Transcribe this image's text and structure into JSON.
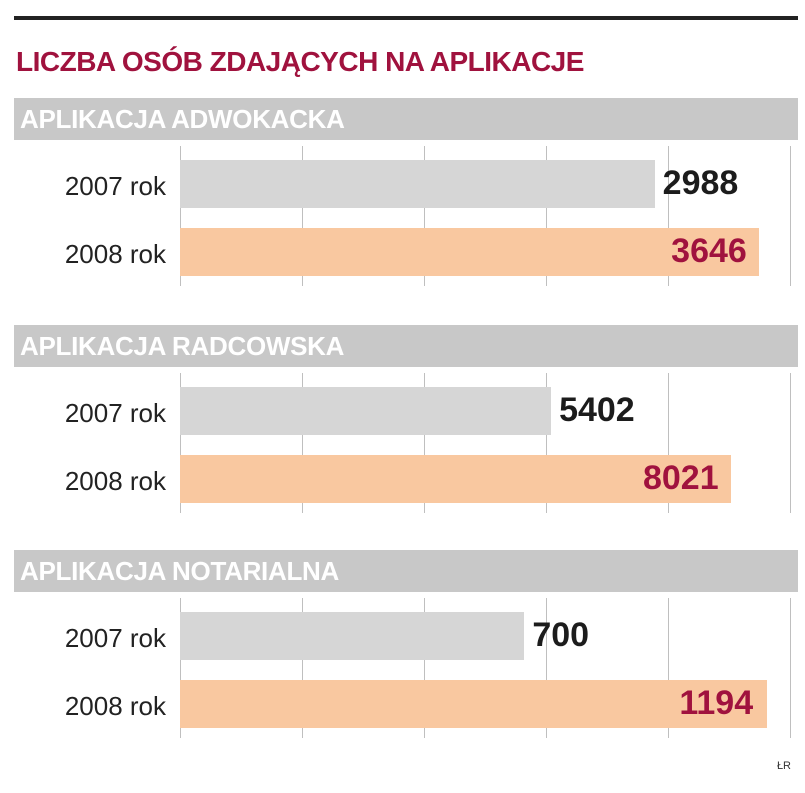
{
  "chart_data": {
    "type": "bar",
    "title": "LICZBA OSÓB ZDAJĄCYCH NA APLIKACJE",
    "source": "ŁR",
    "xlim": [
      0,
      1200
    ],
    "grid": true,
    "panels": [
      {
        "title": "APLIKACJA ADWOKACKA",
        "categories": [
          "2007 rok",
          "2008 rok"
        ],
        "values": [
          2988,
          3646
        ],
        "labels": [
          "2988",
          "3646"
        ],
        "xlim": [
          0,
          3840
        ]
      },
      {
        "title": "APLIKACJA RADCOWSKA",
        "categories": [
          "2007 rok",
          "2008 rok"
        ],
        "values": [
          5402,
          8021
        ],
        "labels": [
          "5402",
          "8021"
        ],
        "xlim": [
          0,
          8880
        ]
      },
      {
        "title": "APLIKACJA NOTARIALNA",
        "categories": [
          "2007 rok",
          "2008 rok"
        ],
        "values": [
          700,
          1194
        ],
        "labels": [
          "700",
          "1194"
        ],
        "xlim": [
          0,
          1240
        ]
      }
    ],
    "colors": {
      "2007": "#d6d6d6",
      "2008": "#f9c8a0",
      "title": "#a0123e",
      "header": "#c8c8c8"
    }
  }
}
